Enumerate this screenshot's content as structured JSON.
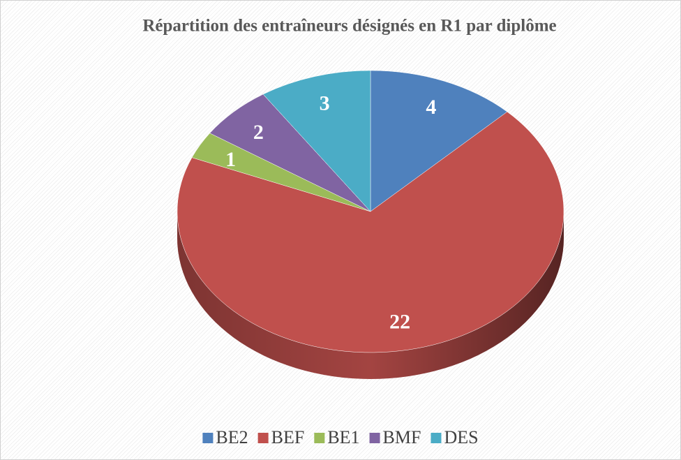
{
  "chart_data": {
    "type": "pie",
    "title": "Répartition des entraîneurs désignés en R1 par diplôme",
    "categories": [
      "BE2",
      "BEF",
      "BE1",
      "BMF",
      "DES"
    ],
    "values": [
      4,
      22,
      1,
      2,
      3
    ],
    "colors": [
      "#4f81bd",
      "#c0504d",
      "#9bbb59",
      "#8064a2",
      "#4bacc6"
    ],
    "legend": "bottom"
  }
}
